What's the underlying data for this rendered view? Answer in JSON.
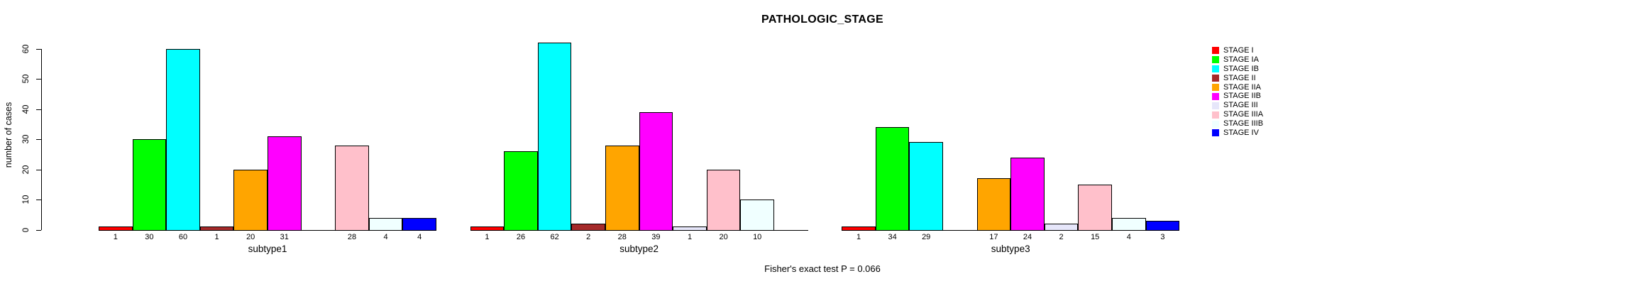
{
  "title": "PATHOLOGIC_STAGE",
  "footer": "Fisher's exact test P = 0.066",
  "chart_data": {
    "type": "bar",
    "title": "PATHOLOGIC_STAGE",
    "xlabel": "",
    "ylabel": "number of cases",
    "footer": "Fisher's exact test P = 0.066",
    "ylim": [
      0,
      62
    ],
    "yticks": [
      0,
      10,
      20,
      30,
      40,
      50,
      60
    ],
    "grid": false,
    "legend_position": "right",
    "legend": [
      {
        "label": "STAGE I",
        "color": "#FF0000"
      },
      {
        "label": "STAGE IA",
        "color": "#00FF00"
      },
      {
        "label": "STAGE IB",
        "color": "#00FFFF"
      },
      {
        "label": "STAGE II",
        "color": "#A52A2A"
      },
      {
        "label": "STAGE IIA",
        "color": "#FFA500"
      },
      {
        "label": "STAGE IIB",
        "color": "#FF00FF"
      },
      {
        "label": "STAGE III",
        "color": "#E6E6FA"
      },
      {
        "label": "STAGE IIIA",
        "color": "#FFC0CB"
      },
      {
        "label": "STAGE IIIB",
        "color": "#F0FFFF"
      },
      {
        "label": "STAGE IV",
        "color": "#0000FF"
      }
    ],
    "series_note": "values are per-stage case counts in legend order; 0 = no bar drawn and no label shown",
    "groups": [
      {
        "label": "subtype1",
        "values": [
          1,
          30,
          60,
          1,
          20,
          31,
          0,
          28,
          4,
          4
        ]
      },
      {
        "label": "subtype2",
        "values": [
          1,
          26,
          62,
          2,
          28,
          39,
          1,
          20,
          10,
          0
        ]
      },
      {
        "label": "subtype3",
        "values": [
          1,
          34,
          29,
          0,
          17,
          24,
          2,
          15,
          4,
          3
        ]
      }
    ]
  }
}
